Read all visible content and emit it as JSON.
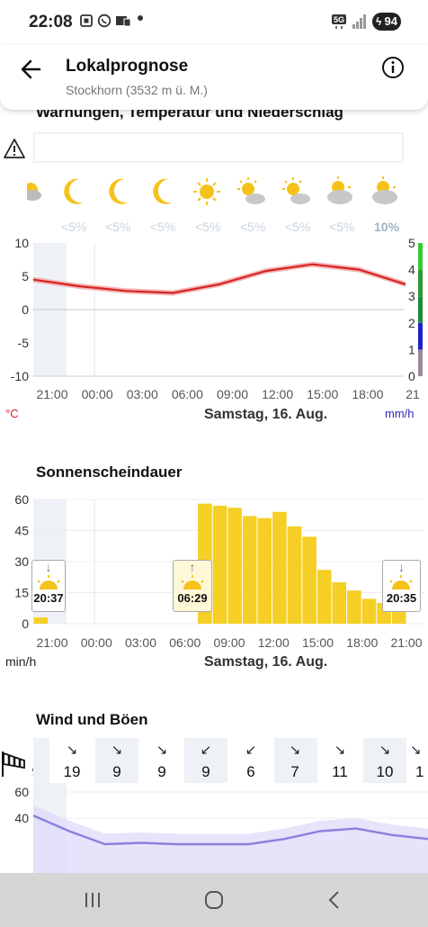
{
  "status_bar": {
    "time": "22:08",
    "network": "5G",
    "battery": "94"
  },
  "header": {
    "title": "Lokalprognose",
    "subtitle": "Stockhorn (3532 m ü. M.)",
    "back_icon": "arrow-left-icon",
    "info_icon": "info-icon"
  },
  "section_temp": {
    "title": "Warnungen, Temperatur und Niederschlag",
    "warning_icon": "warning-triangle-icon",
    "weather_icons": [
      "sun-partial-cloud-icon",
      "moon-icon",
      "moon-icon",
      "moon-icon",
      "sun-icon",
      "sun-cloud-icon",
      "sun-cloud-icon",
      "sun-cloud-icon",
      "sun-cloud-icon"
    ],
    "precip_pct": [
      "<5%",
      "<5%",
      "<5%",
      "<5%",
      "<5%",
      "<5%",
      "<5%",
      "10%"
    ],
    "unit_left": "°C",
    "unit_right": "mm/h",
    "date": "Samstag, 16. Aug."
  },
  "section_sun": {
    "title": "Sonnenscheindauer",
    "unit": "min/h",
    "date": "Samstag, 16. Aug.",
    "markers": [
      {
        "label": "20:37",
        "direction": "down"
      },
      {
        "label": "06:29",
        "direction": "up"
      },
      {
        "label": "20:35",
        "direction": "down"
      }
    ]
  },
  "section_wind": {
    "title": "Wind und Böen",
    "icon": "windsock-icon",
    "arrows": [
      "",
      "↘",
      "↘",
      "↘",
      "↙",
      "↙",
      "↘",
      "↘",
      "↘",
      "↘"
    ],
    "values": [
      "9",
      "19",
      "9",
      "9",
      "9",
      "6",
      "7",
      "11",
      "10",
      "1"
    ]
  },
  "chart_data": [
    {
      "type": "line",
      "title": "Temperatur",
      "x": [
        "21:00",
        "00:00",
        "03:00",
        "06:00",
        "09:00",
        "12:00",
        "15:00",
        "18:00",
        "21"
      ],
      "series": [
        {
          "values": [
            4.5,
            3.5,
            2.8,
            2.5,
            3.8,
            5.8,
            6.8,
            6.0,
            3.8
          ]
        }
      ],
      "ylim": [
        -10,
        10
      ],
      "yticks": [
        10,
        5,
        0,
        -5,
        -10
      ],
      "y2ticks": [
        5,
        4,
        3,
        2,
        1,
        0
      ],
      "y2lim": [
        0,
        5
      ],
      "colors": {
        "line": "#d62424",
        "band": "#f5b5b5"
      },
      "grid": true
    },
    {
      "type": "bar",
      "title": "Sonnenscheindauer",
      "x": [
        "21:00",
        "00:00",
        "03:00",
        "06:00",
        "09:00",
        "12:00",
        "15:00",
        "18:00",
        "21:00"
      ],
      "categories": [
        "20",
        "21",
        "22",
        "23",
        "00",
        "01",
        "02",
        "03",
        "04",
        "05",
        "06",
        "07",
        "08",
        "09",
        "10",
        "11",
        "12",
        "13",
        "14",
        "15",
        "16",
        "17",
        "18",
        "19",
        "20",
        "21"
      ],
      "values": [
        3,
        0,
        0,
        0,
        0,
        0,
        0,
        0,
        0,
        0,
        0,
        58,
        57,
        56,
        52,
        51,
        54,
        47,
        42,
        26,
        20,
        16,
        12,
        10,
        7,
        0
      ],
      "ylim": [
        0,
        60
      ],
      "yticks": [
        60,
        45,
        30,
        15,
        0
      ],
      "colors": {
        "bar": "#f5cf25"
      }
    },
    {
      "type": "area",
      "title": "Wind und Böen",
      "ylim": [
        20,
        60
      ],
      "yticks": [
        60,
        40
      ],
      "series": [
        {
          "name": "Wind",
          "values": [
            42,
            30,
            20,
            21,
            20,
            20,
            20,
            24,
            30,
            32,
            27,
            24
          ]
        }
      ],
      "colors": {
        "line": "#8a80e0",
        "band": "#e0dcfa"
      }
    }
  ]
}
